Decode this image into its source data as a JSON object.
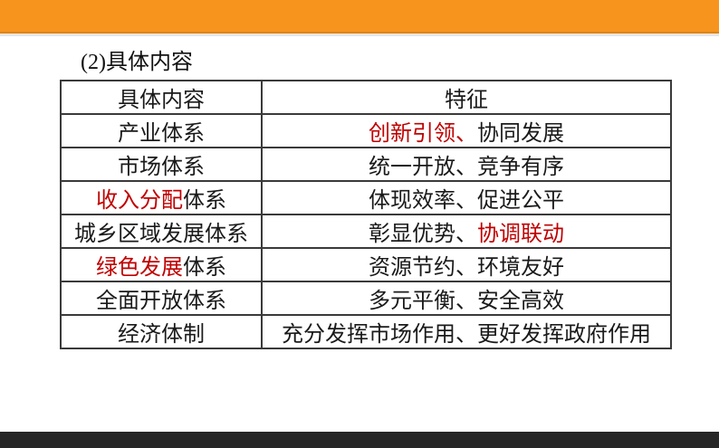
{
  "slide": {
    "title": "(2)具体内容"
  },
  "colors": {
    "accent_orange": "#F7941E",
    "accent_orange_dark": "#DF8312",
    "footer_dark": "#262626",
    "highlight_red": "#C00000",
    "text_black": "#1A1A1A"
  },
  "table": {
    "headers": [
      {
        "label": "具体内容"
      },
      {
        "label": "特征"
      }
    ],
    "rows": [
      {
        "content": [
          {
            "t": "产业体系"
          }
        ],
        "feature": [
          {
            "t": "创新引领",
            "red": true,
            "u": true
          },
          {
            "t": "、",
            "red": true
          },
          {
            "t": "协同发展"
          }
        ]
      },
      {
        "content": [
          {
            "t": "市场体系"
          }
        ],
        "feature": [
          {
            "t": "统一开放、竞争有序"
          }
        ]
      },
      {
        "content": [
          {
            "t": "收入分配",
            "red": true,
            "u": true
          },
          {
            "t": "体系"
          }
        ],
        "feature": [
          {
            "t": "体现效率、促进公平"
          }
        ]
      },
      {
        "content": [
          {
            "t": "城乡区域发展体系"
          }
        ],
        "feature": [
          {
            "t": "彰显优势、"
          },
          {
            "t": "协调联动",
            "red": true,
            "u": true
          }
        ]
      },
      {
        "content": [
          {
            "t": "绿色发展",
            "red": true,
            "u": true
          },
          {
            "t": "体系"
          }
        ],
        "feature": [
          {
            "t": "资源节约、环境友好"
          }
        ]
      },
      {
        "content": [
          {
            "t": "全面开放体系"
          }
        ],
        "feature": [
          {
            "t": "多元平衡、安全高效"
          }
        ]
      },
      {
        "content": [
          {
            "t": "经济体制"
          }
        ],
        "feature": [
          {
            "t": "充分发挥市场作用、更好发挥政府作用"
          }
        ]
      }
    ]
  }
}
